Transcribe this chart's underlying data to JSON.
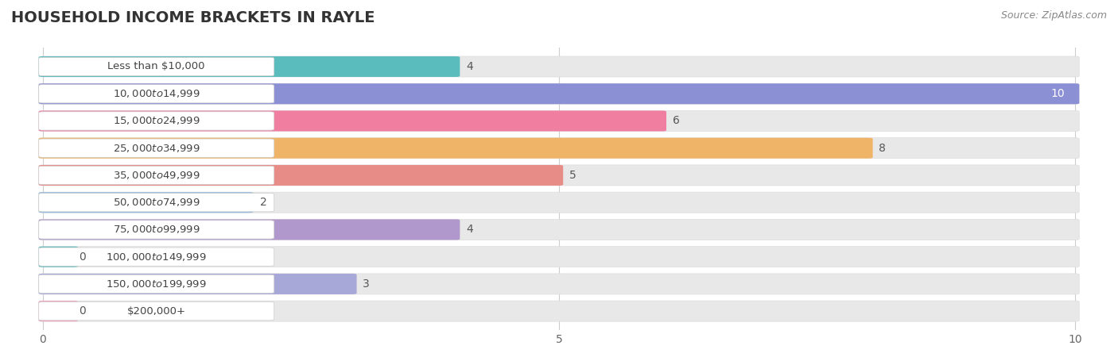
{
  "title": "HOUSEHOLD INCOME BRACKETS IN RAYLE",
  "source": "Source: ZipAtlas.com",
  "categories": [
    "Less than $10,000",
    "$10,000 to $14,999",
    "$15,000 to $24,999",
    "$25,000 to $34,999",
    "$35,000 to $49,999",
    "$50,000 to $74,999",
    "$75,000 to $99,999",
    "$100,000 to $149,999",
    "$150,000 to $199,999",
    "$200,000+"
  ],
  "values": [
    4,
    10,
    6,
    8,
    5,
    2,
    4,
    0,
    3,
    0
  ],
  "bar_colors": [
    "#5bbcbe",
    "#8b8fd4",
    "#f07ea0",
    "#f0b468",
    "#e88c88",
    "#90b8e0",
    "#b098cc",
    "#5bbcbe",
    "#a8a8d8",
    "#f0a0b8"
  ],
  "xlim": [
    -0.05,
    10
  ],
  "xticks": [
    0,
    5,
    10
  ],
  "background_color": "#ffffff",
  "bar_background_color": "#e8e8e8",
  "label_inside_color": "#ffffff",
  "label_outside_color": "#555555",
  "title_fontsize": 14,
  "source_fontsize": 9,
  "tick_fontsize": 10,
  "bar_label_fontsize": 10,
  "category_fontsize": 9.5,
  "value_threshold_inside": 9.2
}
